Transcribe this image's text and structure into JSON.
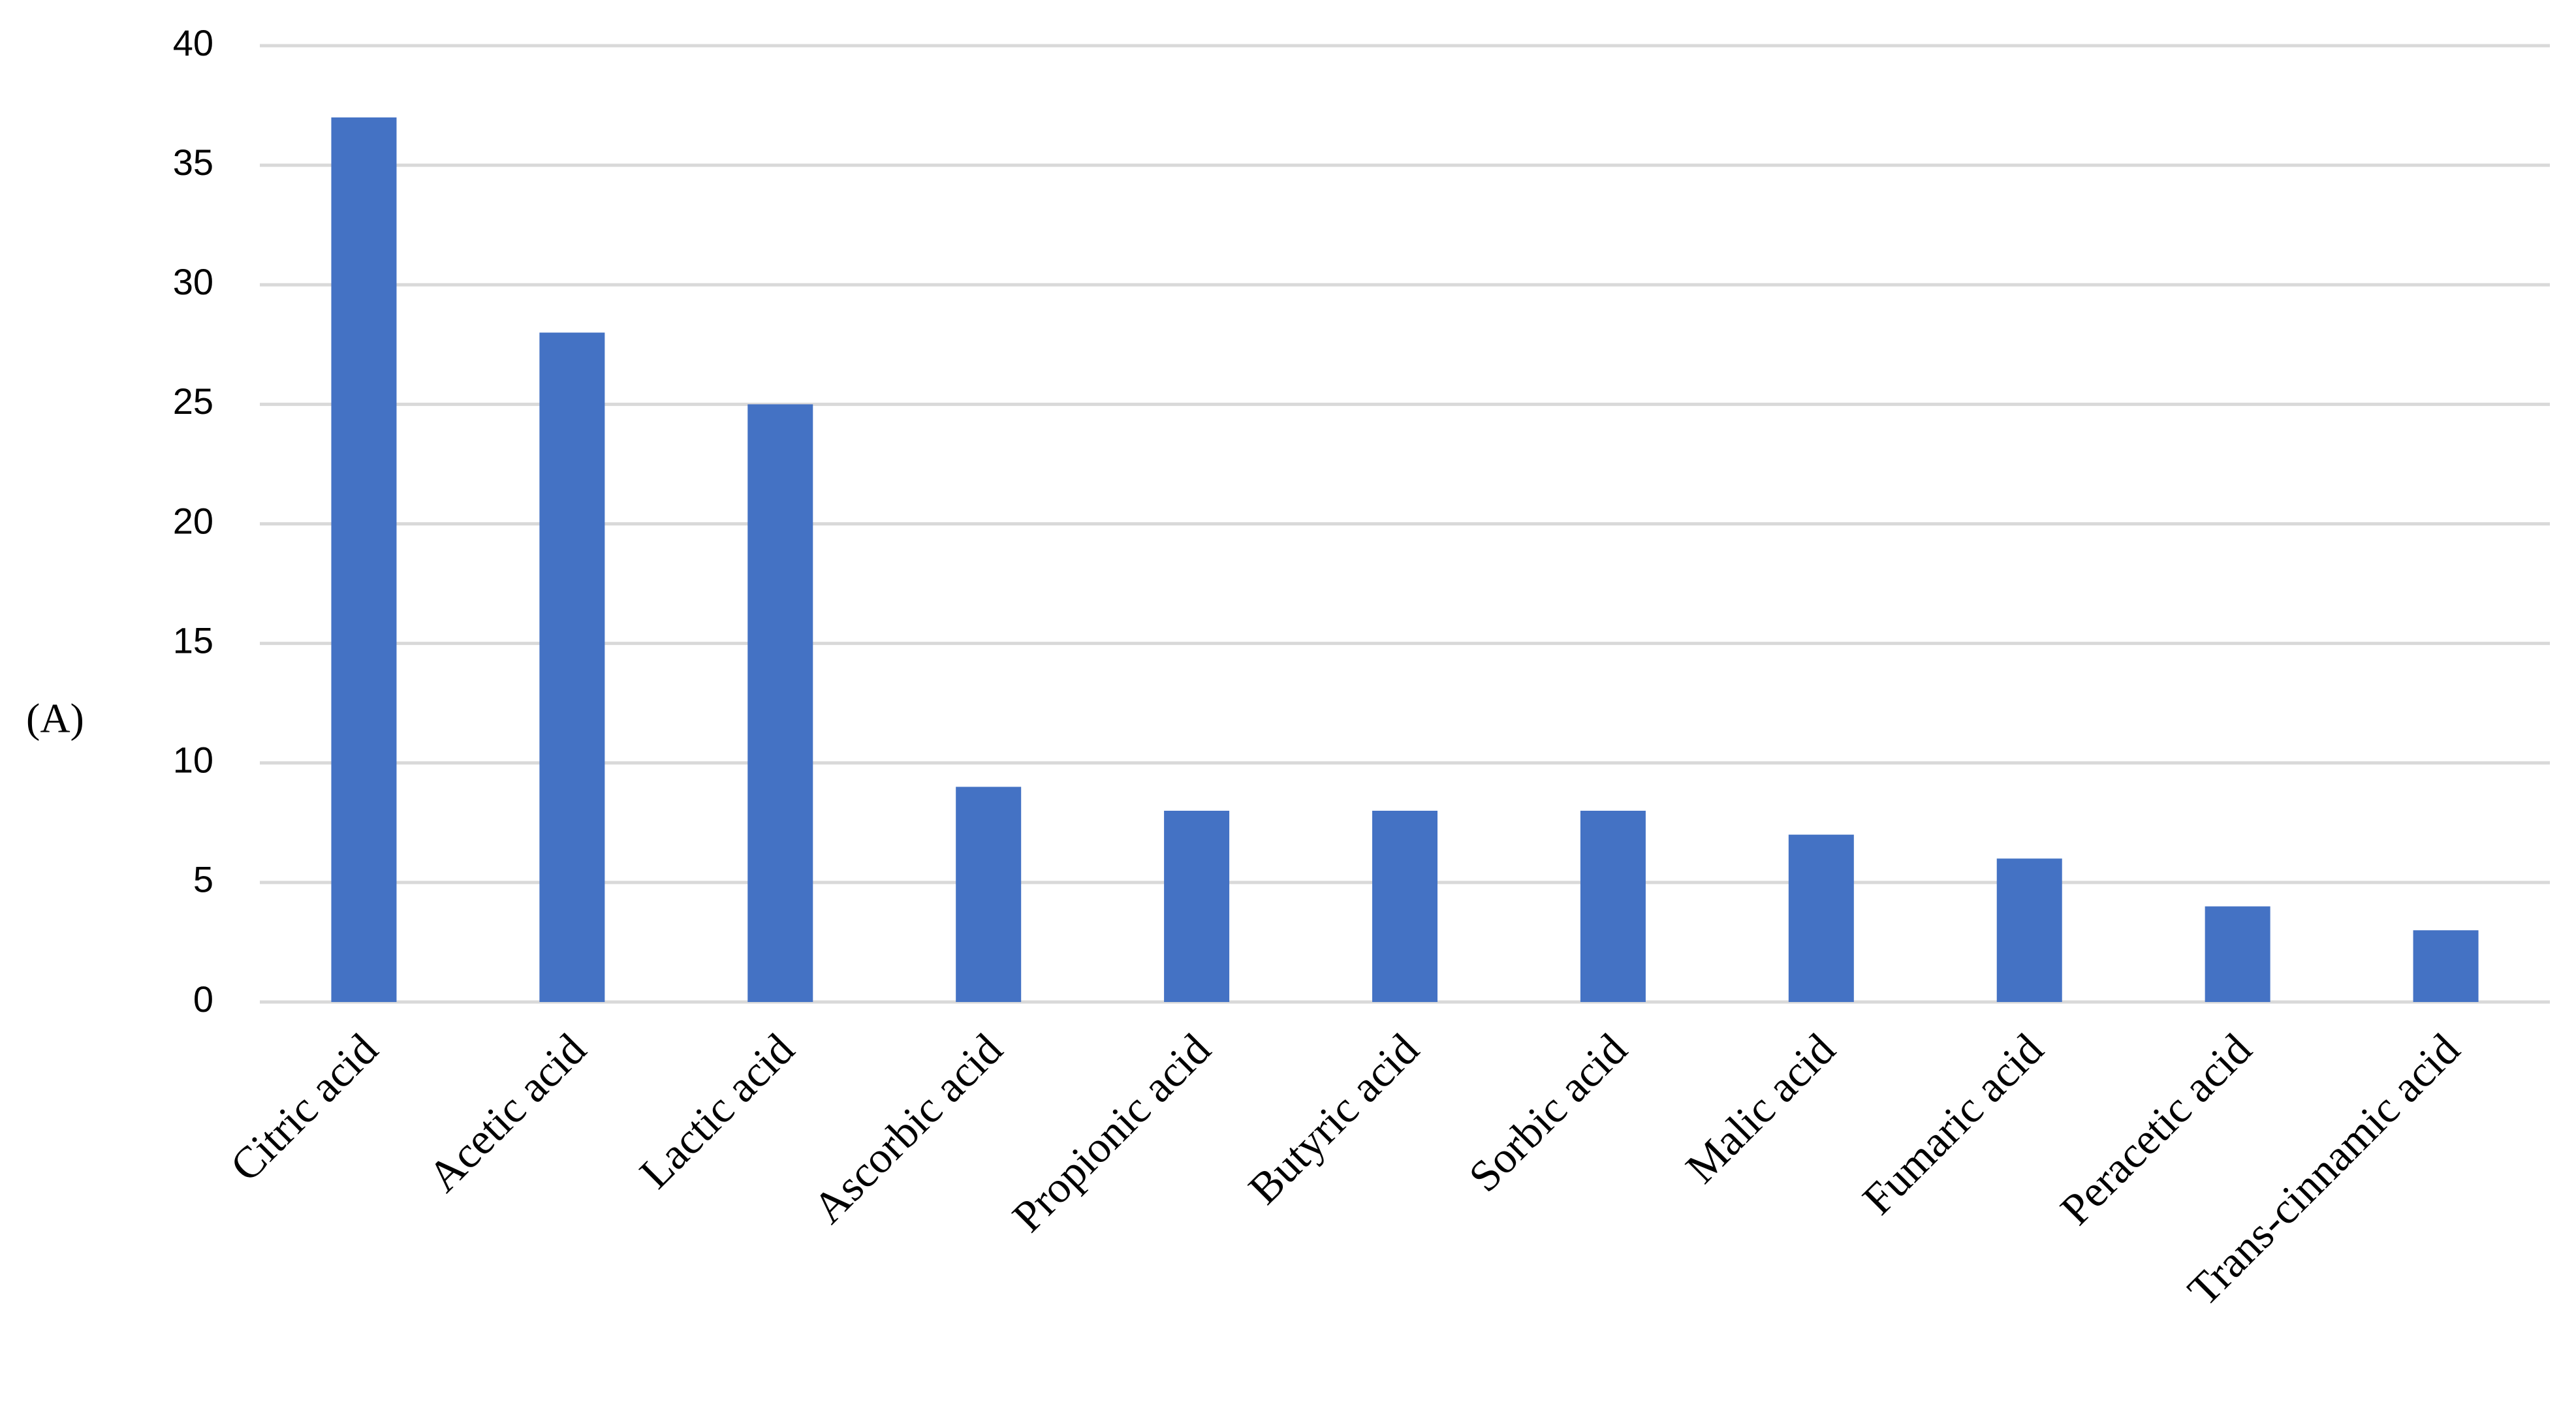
{
  "chart_data": {
    "type": "bar",
    "annotation": "(A)",
    "categories": [
      "Citric acid",
      "Acetic acid",
      "Lactic acid",
      "Ascorbic acid",
      "Propionic acid",
      "Butyric acid",
      "Sorbic acid",
      "Malic acid",
      "Fumaric acid",
      "Peracetic acid",
      "Trans-cinnamic acid"
    ],
    "values": [
      37,
      28,
      25,
      9,
      8,
      8,
      8,
      7,
      6,
      4,
      3
    ],
    "color": "#4472c4",
    "ylim": [
      0,
      40
    ],
    "yticks": [
      0,
      5,
      10,
      15,
      20,
      25,
      30,
      35,
      40
    ],
    "grid": true
  }
}
